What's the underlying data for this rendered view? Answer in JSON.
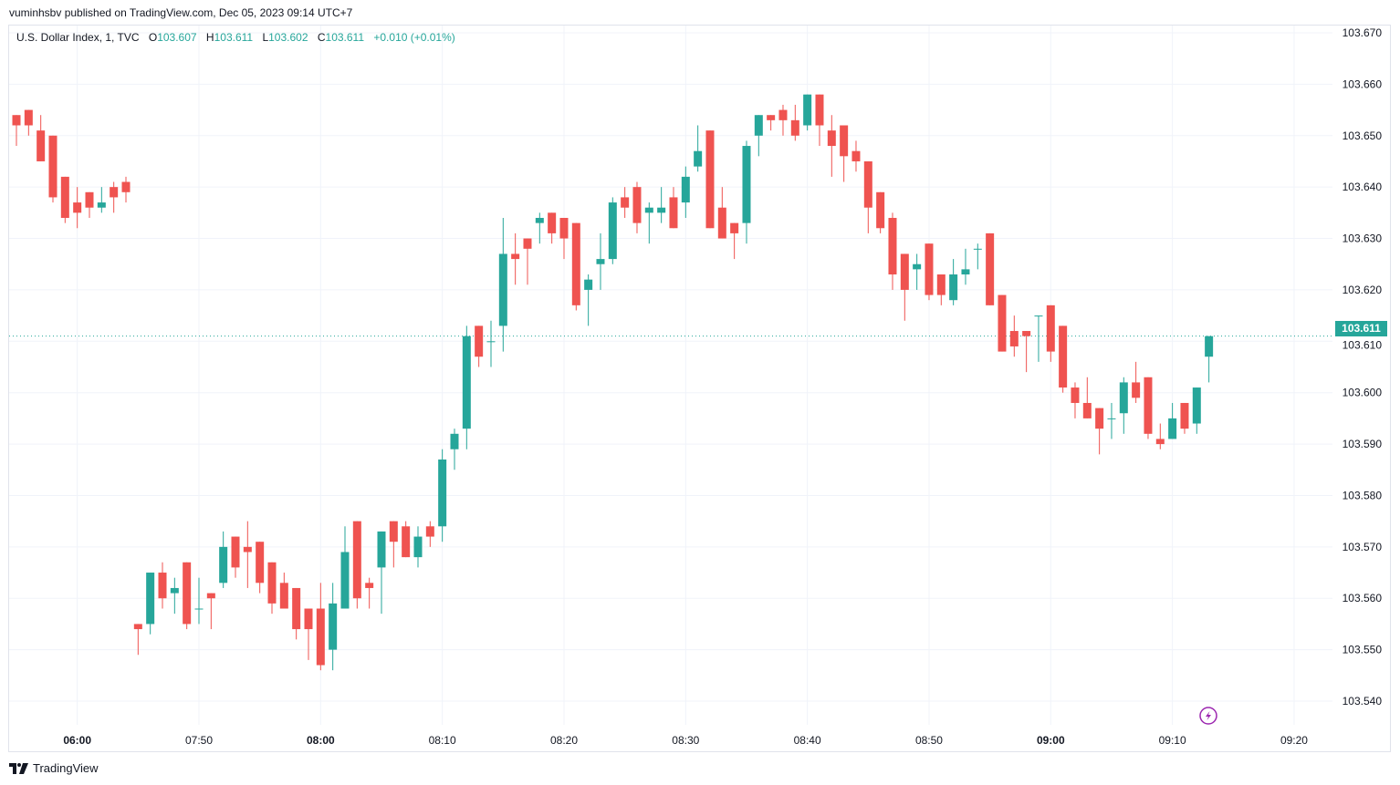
{
  "header": {
    "published": "vuminhsbv published on TradingView.com, Dec 05, 2023 09:14 UTC+7"
  },
  "legend": {
    "symbol": "U.S. Dollar Index, 1, TVC",
    "o_label": "O",
    "o": "103.607",
    "h_label": "H",
    "h": "103.611",
    "l_label": "L",
    "l": "103.602",
    "c_label": "C",
    "c": "103.611",
    "change": "+0.010 (+0.01%)"
  },
  "last_price": "103.611",
  "footer": {
    "brand": "TradingView"
  },
  "colors": {
    "up": "#26a69a",
    "down": "#ef5350",
    "grid": "#f0f3fa",
    "alert": "#9c27b0"
  },
  "icons": {
    "alert": "lightning-icon",
    "logo": "tradingview-logo-icon"
  },
  "chart_data": {
    "type": "candlestick",
    "title": "U.S. Dollar Index, 1, TVC",
    "ylim": [
      103.54,
      103.67
    ],
    "y_ticks": [
      "103.540",
      "103.550",
      "103.560",
      "103.570",
      "103.580",
      "103.590",
      "103.600",
      "103.610",
      "103.620",
      "103.630",
      "103.640",
      "103.650",
      "103.660",
      "103.670"
    ],
    "x_ticks": [
      {
        "label": "06:00",
        "bold": true
      },
      {
        "label": "07:50",
        "bold": false
      },
      {
        "label": "08:00",
        "bold": true
      },
      {
        "label": "08:10",
        "bold": false
      },
      {
        "label": "08:20",
        "bold": false
      },
      {
        "label": "08:30",
        "bold": false
      },
      {
        "label": "08:40",
        "bold": false
      },
      {
        "label": "08:50",
        "bold": false
      },
      {
        "label": "09:00",
        "bold": true
      },
      {
        "label": "09:10",
        "bold": false
      },
      {
        "label": "09:20",
        "bold": false
      }
    ],
    "grid": true,
    "columns": [
      "time",
      "open",
      "high",
      "low",
      "close"
    ],
    "candles": [
      [
        "05:55",
        103.654,
        103.654,
        103.648,
        103.652
      ],
      [
        "05:56",
        103.655,
        103.655,
        103.65,
        103.652
      ],
      [
        "05:57",
        103.651,
        103.654,
        103.645,
        103.645
      ],
      [
        "05:58",
        103.65,
        103.65,
        103.637,
        103.638
      ],
      [
        "05:59",
        103.642,
        103.642,
        103.633,
        103.634
      ],
      [
        "06:00",
        103.637,
        103.64,
        103.632,
        103.635
      ],
      [
        "06:01",
        103.639,
        103.639,
        103.634,
        103.636
      ],
      [
        "06:02",
        103.636,
        103.64,
        103.635,
        103.637
      ],
      [
        "06:03",
        103.64,
        103.641,
        103.635,
        103.638
      ],
      [
        "06:04",
        103.641,
        103.642,
        103.637,
        103.639
      ],
      [
        "07:45",
        103.555,
        103.555,
        103.549,
        103.554
      ],
      [
        "07:46",
        103.555,
        103.565,
        103.553,
        103.565
      ],
      [
        "07:47",
        103.565,
        103.567,
        103.558,
        103.56
      ],
      [
        "07:48",
        103.561,
        103.564,
        103.557,
        103.562
      ],
      [
        "07:49",
        103.567,
        103.567,
        103.554,
        103.555
      ],
      [
        "07:50",
        103.558,
        103.564,
        103.555,
        103.558
      ],
      [
        "07:51",
        103.561,
        103.561,
        103.554,
        103.56
      ],
      [
        "07:52",
        103.563,
        103.573,
        103.562,
        103.57
      ],
      [
        "07:53",
        103.572,
        103.572,
        103.564,
        103.566
      ],
      [
        "07:54",
        103.57,
        103.575,
        103.562,
        103.569
      ],
      [
        "07:55",
        103.571,
        103.571,
        103.561,
        103.563
      ],
      [
        "07:56",
        103.567,
        103.567,
        103.557,
        103.559
      ],
      [
        "07:57",
        103.563,
        103.565,
        103.558,
        103.558
      ],
      [
        "07:58",
        103.562,
        103.562,
        103.552,
        103.554
      ],
      [
        "07:59",
        103.558,
        103.558,
        103.548,
        103.554
      ],
      [
        "08:00",
        103.558,
        103.563,
        103.546,
        103.547
      ],
      [
        "08:01",
        103.55,
        103.563,
        103.546,
        103.559
      ],
      [
        "08:02",
        103.558,
        103.574,
        103.558,
        103.569
      ],
      [
        "08:03",
        103.575,
        103.575,
        103.558,
        103.56
      ],
      [
        "08:04",
        103.563,
        103.564,
        103.558,
        103.562
      ],
      [
        "08:05",
        103.566,
        103.573,
        103.557,
        103.573
      ],
      [
        "08:06",
        103.575,
        103.575,
        103.566,
        103.571
      ],
      [
        "08:07",
        103.574,
        103.575,
        103.568,
        103.568
      ],
      [
        "08:08",
        103.568,
        103.574,
        103.566,
        103.572
      ],
      [
        "08:09",
        103.574,
        103.575,
        103.57,
        103.572
      ],
      [
        "08:10",
        103.574,
        103.589,
        103.571,
        103.587
      ],
      [
        "08:11",
        103.589,
        103.593,
        103.585,
        103.592
      ],
      [
        "08:12",
        103.593,
        103.613,
        103.589,
        103.611
      ],
      [
        "08:13",
        103.613,
        103.613,
        103.605,
        103.607
      ],
      [
        "08:14",
        103.61,
        103.614,
        103.605,
        103.61
      ],
      [
        "08:15",
        103.613,
        103.634,
        103.608,
        103.627
      ],
      [
        "08:16",
        103.627,
        103.631,
        103.621,
        103.626
      ],
      [
        "08:17",
        103.63,
        103.63,
        103.621,
        103.628
      ],
      [
        "08:18",
        103.633,
        103.635,
        103.629,
        103.634
      ],
      [
        "08:19",
        103.635,
        103.635,
        103.629,
        103.631
      ],
      [
        "08:20",
        103.634,
        103.634,
        103.626,
        103.63
      ],
      [
        "08:21",
        103.633,
        103.633,
        103.616,
        103.617
      ],
      [
        "08:22",
        103.62,
        103.623,
        103.613,
        103.622
      ],
      [
        "08:23",
        103.625,
        103.631,
        103.62,
        103.626
      ],
      [
        "08:24",
        103.626,
        103.638,
        103.625,
        103.637
      ],
      [
        "08:25",
        103.638,
        103.64,
        103.634,
        103.636
      ],
      [
        "08:26",
        103.64,
        103.641,
        103.631,
        103.633
      ],
      [
        "08:27",
        103.635,
        103.637,
        103.629,
        103.636
      ],
      [
        "08:28",
        103.635,
        103.64,
        103.633,
        103.636
      ],
      [
        "08:29",
        103.638,
        103.64,
        103.632,
        103.632
      ],
      [
        "08:30",
        103.637,
        103.644,
        103.634,
        103.642
      ],
      [
        "08:31",
        103.644,
        103.652,
        103.643,
        103.647
      ],
      [
        "08:32",
        103.651,
        103.651,
        103.632,
        103.632
      ],
      [
        "08:33",
        103.636,
        103.64,
        103.63,
        103.63
      ],
      [
        "08:34",
        103.633,
        103.633,
        103.626,
        103.631
      ],
      [
        "08:35",
        103.633,
        103.649,
        103.629,
        103.648
      ],
      [
        "08:36",
        103.65,
        103.654,
        103.646,
        103.654
      ],
      [
        "08:37",
        103.654,
        103.654,
        103.651,
        103.653
      ],
      [
        "08:38",
        103.655,
        103.656,
        103.65,
        103.653
      ],
      [
        "08:39",
        103.653,
        103.656,
        103.649,
        103.65
      ],
      [
        "08:40",
        103.652,
        103.658,
        103.651,
        103.658
      ],
      [
        "08:41",
        103.658,
        103.658,
        103.648,
        103.652
      ],
      [
        "08:42",
        103.651,
        103.654,
        103.642,
        103.648
      ],
      [
        "08:43",
        103.652,
        103.652,
        103.641,
        103.646
      ],
      [
        "08:44",
        103.647,
        103.649,
        103.643,
        103.645
      ],
      [
        "08:45",
        103.645,
        103.645,
        103.631,
        103.636
      ],
      [
        "08:46",
        103.639,
        103.639,
        103.631,
        103.632
      ],
      [
        "08:47",
        103.634,
        103.635,
        103.62,
        103.623
      ],
      [
        "08:48",
        103.627,
        103.627,
        103.614,
        103.62
      ],
      [
        "08:49",
        103.624,
        103.627,
        103.62,
        103.625
      ],
      [
        "08:50",
        103.629,
        103.629,
        103.618,
        103.619
      ],
      [
        "08:51",
        103.623,
        103.623,
        103.617,
        103.619
      ],
      [
        "08:52",
        103.618,
        103.626,
        103.617,
        103.623
      ],
      [
        "08:53",
        103.623,
        103.628,
        103.621,
        103.624
      ],
      [
        "08:54",
        103.628,
        103.629,
        103.624,
        103.628
      ],
      [
        "08:55",
        103.631,
        103.631,
        103.617,
        103.617
      ],
      [
        "08:56",
        103.619,
        103.619,
        103.608,
        103.608
      ],
      [
        "08:57",
        103.612,
        103.615,
        103.607,
        103.609
      ],
      [
        "08:58",
        103.612,
        103.612,
        103.604,
        103.611
      ],
      [
        "08:59",
        103.615,
        103.615,
        103.606,
        103.615
      ],
      [
        "09:00",
        103.617,
        103.617,
        103.606,
        103.608
      ],
      [
        "09:01",
        103.613,
        103.613,
        103.6,
        103.601
      ],
      [
        "09:02",
        103.601,
        103.602,
        103.595,
        103.598
      ],
      [
        "09:03",
        103.598,
        103.603,
        103.595,
        103.595
      ],
      [
        "09:04",
        103.597,
        103.597,
        103.588,
        103.593
      ],
      [
        "09:05",
        103.595,
        103.598,
        103.591,
        103.595
      ],
      [
        "09:06",
        103.596,
        103.603,
        103.592,
        103.602
      ],
      [
        "09:07",
        103.602,
        103.606,
        103.598,
        103.599
      ],
      [
        "09:08",
        103.603,
        103.603,
        103.591,
        103.592
      ],
      [
        "09:09",
        103.591,
        103.594,
        103.589,
        103.59
      ],
      [
        "09:10",
        103.591,
        103.598,
        103.591,
        103.595
      ],
      [
        "09:11",
        103.598,
        103.598,
        103.592,
        103.593
      ],
      [
        "09:12",
        103.594,
        103.601,
        103.592,
        103.601
      ],
      [
        "09:13",
        103.607,
        103.611,
        103.602,
        103.611
      ]
    ]
  }
}
